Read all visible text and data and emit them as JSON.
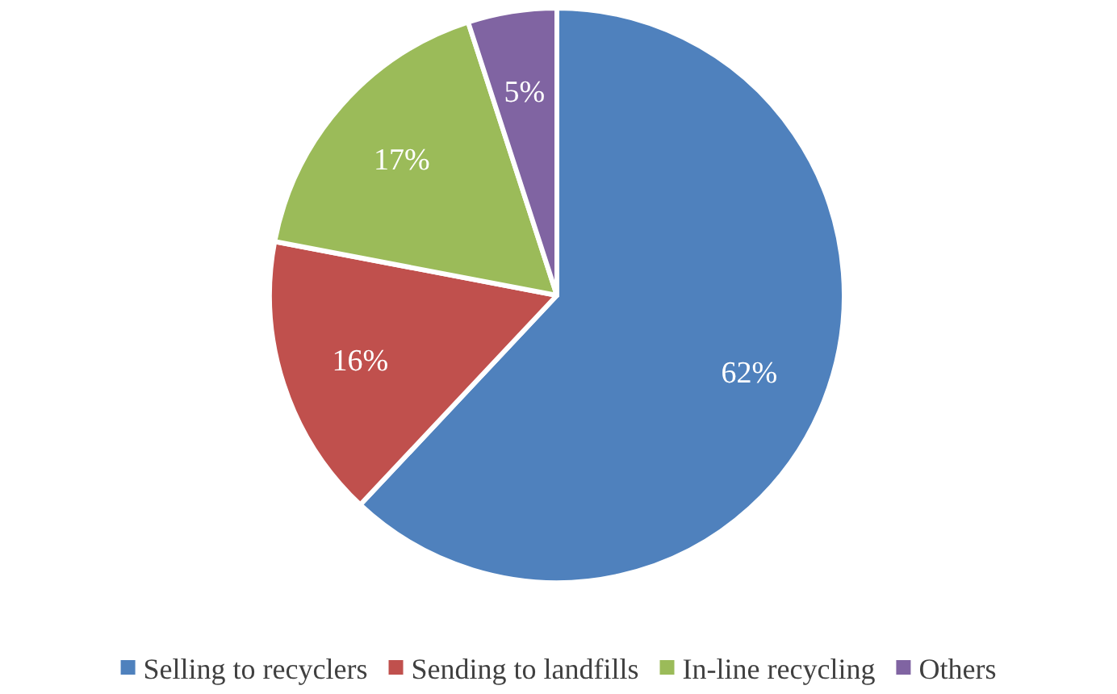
{
  "chart_data": {
    "type": "pie",
    "categories": [
      "Selling to recyclers",
      "Sending to landfills",
      "In-line recycling",
      "Others"
    ],
    "values": [
      62,
      16,
      17,
      5
    ],
    "colors": [
      "#4f81bd",
      "#c0504d",
      "#9bbb59",
      "#8064a2"
    ],
    "value_labels": [
      "62%",
      "16%",
      "17%",
      "5%"
    ],
    "legend": "bottom"
  }
}
